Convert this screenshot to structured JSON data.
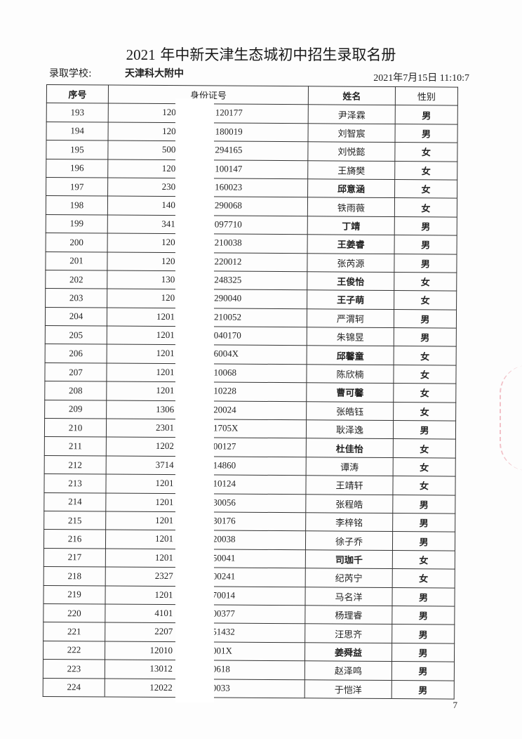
{
  "title_year": "2021",
  "title_rest": " 年中新天津生态城初中招生录取名册",
  "school_label": "录取学校:",
  "school_name": "天津科大附中",
  "datetime": "2021年7月15日  11:10:7",
  "headers": {
    "seq": "序号",
    "id": "身份证号",
    "name": "姓名",
    "gender": "性别"
  },
  "rows": [
    {
      "seq": "193",
      "id_prefix": "120",
      "id_suffix": "120177",
      "name": "尹泽霖",
      "gender": "男"
    },
    {
      "seq": "194",
      "id_prefix": "120",
      "id_suffix": "180019",
      "name": "刘智宸",
      "gender": "男"
    },
    {
      "seq": "195",
      "id_prefix": "500",
      "id_suffix": "294165",
      "name": "刘悦懿",
      "gender": "女"
    },
    {
      "seq": "196",
      "id_prefix": "120",
      "id_suffix": "100147",
      "name": "王旖樊",
      "gender": "女"
    },
    {
      "seq": "197",
      "id_prefix": "230",
      "id_suffix": "160023",
      "name": "邱意涵",
      "gender": "女",
      "bold": true
    },
    {
      "seq": "198",
      "id_prefix": "140",
      "id_suffix": "290068",
      "name": "铁雨薇",
      "gender": "女"
    },
    {
      "seq": "199",
      "id_prefix": "341",
      "id_suffix": "097710",
      "name": "丁靖",
      "gender": "男",
      "bold": true
    },
    {
      "seq": "200",
      "id_prefix": "120",
      "id_suffix": "210038",
      "name": "王姜睿",
      "gender": "男",
      "bold": true
    },
    {
      "seq": "201",
      "id_prefix": "120",
      "id_suffix": "220012",
      "name": "张芮源",
      "gender": "男"
    },
    {
      "seq": "202",
      "id_prefix": "130",
      "id_suffix": "248325",
      "name": "王俊怡",
      "gender": "女",
      "bold": true
    },
    {
      "seq": "203",
      "id_prefix": "120",
      "id_suffix": "290040",
      "name": "王子萌",
      "gender": "女",
      "bold": true
    },
    {
      "seq": "204",
      "id_prefix": "1201",
      "id_suffix": "210052",
      "name": "严渭轲",
      "gender": "男"
    },
    {
      "seq": "205",
      "id_prefix": "1201",
      "id_suffix": "040170",
      "name": "朱锦昱",
      "gender": "男"
    },
    {
      "seq": "206",
      "id_prefix": "1201",
      "id_suffix": "6004X",
      "name": "邱馨童",
      "gender": "女",
      "bold": true
    },
    {
      "seq": "207",
      "id_prefix": "1201",
      "id_suffix": "10068",
      "name": "陈欣楠",
      "gender": "女"
    },
    {
      "seq": "208",
      "id_prefix": "1201",
      "id_suffix": "10228",
      "name": "曹可馨",
      "gender": "女",
      "bold": true
    },
    {
      "seq": "209",
      "id_prefix": "1306",
      "id_suffix": "20024",
      "name": "张皓钰",
      "gender": "女"
    },
    {
      "seq": "210",
      "id_prefix": "2301",
      "id_suffix": "1705X",
      "name": "耿泽逸",
      "gender": "男"
    },
    {
      "seq": "211",
      "id_prefix": "1202",
      "id_suffix": "00127",
      "name": "杜佳怡",
      "gender": "女",
      "bold": true
    },
    {
      "seq": "212",
      "id_prefix": "3714",
      "id_suffix": "14860",
      "name": "谭涛",
      "gender": "女"
    },
    {
      "seq": "213",
      "id_prefix": "1201",
      "id_suffix": "10124",
      "name": "王靖轩",
      "gender": "女"
    },
    {
      "seq": "214",
      "id_prefix": "1201",
      "id_suffix": "30056",
      "name": "张程皓",
      "gender": "男"
    },
    {
      "seq": "215",
      "id_prefix": "1201",
      "id_suffix": "30176",
      "name": "李梓铭",
      "gender": "男"
    },
    {
      "seq": "216",
      "id_prefix": "1201",
      "id_suffix": "20038",
      "name": "徐子乔",
      "gender": "男"
    },
    {
      "seq": "217",
      "id_prefix": "1201",
      "id_suffix": "50041",
      "name": "司珈千",
      "gender": "女",
      "bold": true
    },
    {
      "seq": "218",
      "id_prefix": "2327",
      "id_suffix": "00241",
      "name": "纪芮宁",
      "gender": "女"
    },
    {
      "seq": "219",
      "id_prefix": "1201",
      "id_suffix": "70014",
      "name": "马名洋",
      "gender": "男"
    },
    {
      "seq": "220",
      "id_prefix": "4101",
      "id_suffix": "00377",
      "name": "杨理睿",
      "gender": "男"
    },
    {
      "seq": "221",
      "id_prefix": "2207",
      "id_suffix": "51432",
      "name": "汪思齐",
      "gender": "男"
    },
    {
      "seq": "222",
      "id_prefix": "12010",
      "id_suffix": "001X",
      "name": "姜舜益",
      "gender": "男",
      "bold": true
    },
    {
      "seq": "223",
      "id_prefix": "13012",
      "id_suffix": "0618",
      "name": "赵泽鸣",
      "gender": "男"
    },
    {
      "seq": "224",
      "id_prefix": "12022",
      "id_suffix": "0033",
      "name": "于恺洋",
      "gender": "男"
    }
  ],
  "page_number": "7"
}
